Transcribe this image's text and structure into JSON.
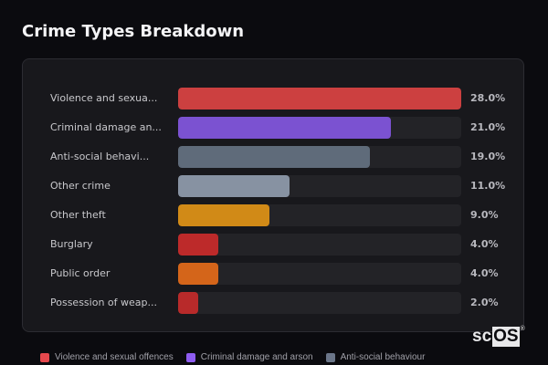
{
  "page": {
    "title": "Crime Types Breakdown"
  },
  "chart_data": {
    "type": "bar",
    "orientation": "horizontal",
    "title": "Crime Types Breakdown",
    "categories": [
      "Violence and sexual offences",
      "Criminal damage and arson",
      "Anti-social behaviour",
      "Other crime",
      "Other theft",
      "Burglary",
      "Public order",
      "Possession of weapons"
    ],
    "display_labels": [
      "Violence and sexua...",
      "Criminal damage an...",
      "Anti-social behavi...",
      "Other crime",
      "Other theft",
      "Burglary",
      "Public order",
      "Possession of weap..."
    ],
    "values": [
      28.0,
      21.0,
      19.0,
      11.0,
      9.0,
      4.0,
      4.0,
      2.0
    ],
    "value_labels": [
      "28.0%",
      "21.0%",
      "19.0%",
      "11.0%",
      "9.0%",
      "4.0%",
      "4.0%",
      "2.0%"
    ],
    "colors": [
      "#cc4040",
      "#7b52d1",
      "#5f6b7a",
      "#8792a2",
      "#d18a17",
      "#bd2a2a",
      "#d4651a",
      "#b82a2a"
    ],
    "xlim": [
      0,
      28
    ],
    "unit": "%"
  },
  "rows": [
    {
      "label": "Violence and sexua...",
      "value": "28.0%",
      "pct": 100,
      "color": "#cc4040"
    },
    {
      "label": "Criminal damage an...",
      "value": "21.0%",
      "pct": 75,
      "color": "#7b52d1"
    },
    {
      "label": "Anti-social behavi...",
      "value": "19.0%",
      "pct": 67.9,
      "color": "#5f6b7a"
    },
    {
      "label": "Other crime",
      "value": "11.0%",
      "pct": 39.3,
      "color": "#8792a2"
    },
    {
      "label": "Other theft",
      "value": "9.0%",
      "pct": 32.1,
      "color": "#d18a17"
    },
    {
      "label": "Burglary",
      "value": "4.0%",
      "pct": 14.3,
      "color": "#bd2a2a"
    },
    {
      "label": "Public order",
      "value": "4.0%",
      "pct": 14.3,
      "color": "#d4651a"
    },
    {
      "label": "Possession of weap...",
      "value": "2.0%",
      "pct": 7.1,
      "color": "#b82a2a"
    }
  ],
  "legend": [
    {
      "label": "Violence and sexual offences",
      "color": "#e5484d"
    },
    {
      "label": "Criminal damage and arson",
      "color": "#8e5cf0"
    },
    {
      "label": "Anti-social behaviour",
      "color": "#6b7689"
    }
  ],
  "watermark": {
    "sc": "sc",
    "os": "OS",
    "reg": "®"
  }
}
